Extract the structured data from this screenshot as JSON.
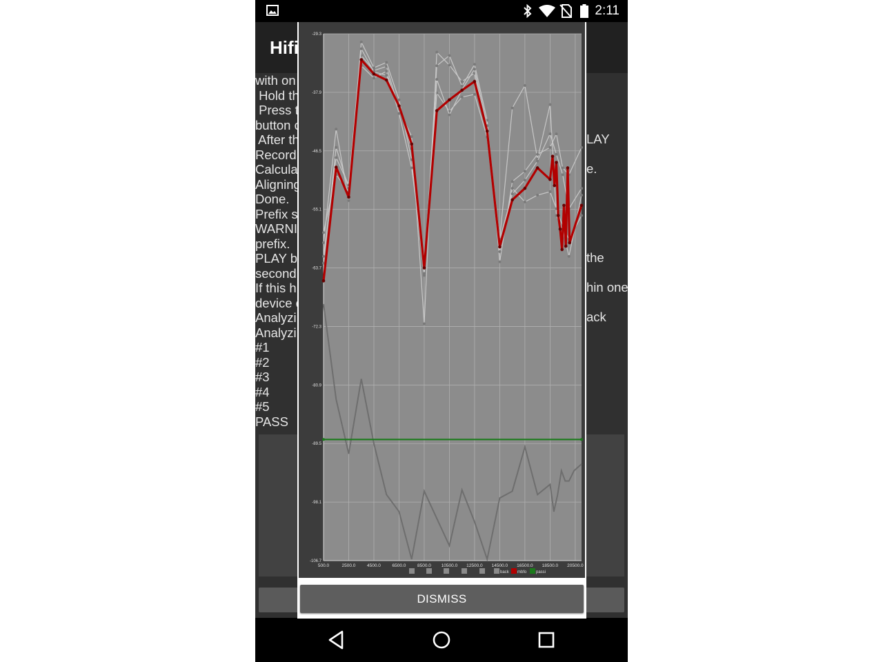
{
  "status_bar": {
    "time": "2:11",
    "icons": [
      "image-icon",
      "bluetooth-icon",
      "wifi-icon",
      "no-sim-icon",
      "battery-icon"
    ]
  },
  "app_bar": {
    "title_visible": "Hifi"
  },
  "log_lines": [
    "with on",
    " Hold th",
    " Press t",
    "button c",
    " After th",
    "Record",
    "Calcula",
    "Aligning",
    "Done.",
    "Prefix s",
    "WARNI",
    "prefix.",
    "PLAY b",
    "second",
    "If this h",
    "device c",
    "Analyzi",
    "Analyzi",
    "#1",
    "#2",
    "#3",
    "#4",
    "#5",
    "PASS"
  ],
  "log_right_fragments": [
    {
      "line": 2,
      "text": "LAY"
    },
    {
      "line": 4,
      "text": "e."
    },
    {
      "line": 10,
      "text": "the"
    },
    {
      "line": 12,
      "text": "hin one"
    },
    {
      "line": 14,
      "text": "ack"
    }
  ],
  "dialog": {
    "dismiss_label": "DISMISS"
  },
  "chart_data": {
    "type": "line",
    "xlim": [
      500,
      21000
    ],
    "ylim": [
      -106.7,
      -29.3
    ],
    "x_ticks": [
      "500.0",
      "2500.0",
      "4500.0",
      "6500.0",
      "8500.0",
      "10500.0",
      "12500.0",
      "14500.0",
      "16500.0",
      "18500.0",
      "20500.0"
    ],
    "y_ticks": [
      "-29.3",
      "-37.9",
      "-46.5",
      "-55.1",
      "-63.7",
      "-72.3",
      "-80.9",
      "-89.5",
      "-98.1",
      "-106.7"
    ],
    "legend": [
      "back",
      "mbfo",
      "passi"
    ],
    "legend_placement": "bottom",
    "grid": true,
    "colors": {
      "plot_bg": "#8c8c8c",
      "frame_bg": "#3c3c3c",
      "light_series": "#c8c8c8",
      "background_series": "#6e6e6e",
      "main_series": "#b20000",
      "pass_series": "#1b7a1b"
    },
    "main_series": {
      "x": [
        500,
        1500,
        2500,
        3500,
        4500,
        5500,
        6500,
        7500,
        8500,
        9500,
        10500,
        11500,
        12500,
        13500,
        14500,
        15500,
        16500,
        17500,
        18500,
        18700,
        18850,
        19000,
        19150,
        19300,
        19450,
        19600,
        19750,
        19900,
        20050,
        21000
      ],
      "y": [
        -65.6,
        -48.9,
        -53.3,
        -33.1,
        -35.2,
        -36.1,
        -39.9,
        -45.5,
        -63.7,
        -40.6,
        -39.0,
        -37.6,
        -36.3,
        -43.6,
        -60.6,
        -53.7,
        -52.0,
        -49.0,
        -50.7,
        -47.3,
        -51.6,
        -48.2,
        -56.0,
        -58.0,
        -61.0,
        -54.5,
        -60.5,
        -49.0,
        -60.0,
        -54.5
      ]
    },
    "light_series": [
      {
        "x": [
          500,
          1500,
          2500,
          3500,
          4500,
          5500,
          6500,
          7500,
          8500,
          9500,
          10500,
          11500,
          12500,
          13500,
          14500,
          15500,
          16500,
          17500,
          18500,
          19000,
          19500,
          20000,
          21000
        ],
        "y": [
          -60.0,
          -43.3,
          -53.8,
          -32.5,
          -34.7,
          -34.1,
          -40.4,
          -44.4,
          -71.9,
          -32.0,
          -33.9,
          -36.3,
          -35.1,
          -43.8,
          -59.5,
          -40.2,
          -36.9,
          -47.7,
          -39.7,
          -56.0,
          -58.0,
          -62.0,
          -53.0
        ]
      },
      {
        "x": [
          500,
          1500,
          2500,
          3500,
          4500,
          5500,
          6500,
          7500,
          8500,
          9500,
          10500,
          11500,
          12500,
          13500,
          14500,
          15500,
          16500,
          17500,
          18500,
          19000,
          19500,
          20000,
          21000
        ],
        "y": [
          -63.0,
          -46.0,
          -52.0,
          -30.5,
          -34.3,
          -33.5,
          -39.0,
          -47.8,
          -64.8,
          -34.0,
          -32.5,
          -37.0,
          -33.8,
          -42.0,
          -62.8,
          -51.0,
          -49.5,
          -47.0,
          -46.0,
          -44.0,
          -49.0,
          -50.0,
          -46.0
        ]
      },
      {
        "x": [
          500,
          1500,
          2500,
          3500,
          4500,
          5500,
          6500,
          7500,
          8500,
          9500,
          10500,
          11500,
          12500,
          13500,
          14500,
          15500,
          16500,
          17500,
          18500,
          19000,
          19500,
          20000,
          21000
        ],
        "y": [
          -58.5,
          -50.0,
          -52.5,
          -34.0,
          -35.8,
          -34.8,
          -41.0,
          -49.0,
          -63.0,
          -38.0,
          -40.7,
          -38.6,
          -38.2,
          -44.5,
          -61.3,
          -52.0,
          -54.0,
          -53.0,
          -52.5,
          -55.0,
          -57.5,
          -59.5,
          -56.0
        ]
      },
      {
        "x": [
          500,
          1500,
          2500,
          3500,
          4500,
          5500,
          6500,
          7500,
          8500,
          9500,
          10500,
          11500,
          12500,
          13500,
          14500,
          15500,
          16500,
          17500,
          18500,
          19000,
          19500,
          20000,
          21000
        ],
        "y": [
          -62.0,
          -47.5,
          -51.5,
          -31.5,
          -34.9,
          -35.4,
          -40.0,
          -46.2,
          -64.5,
          -36.0,
          -41.2,
          -37.5,
          -34.5,
          -42.8,
          -59.5,
          -52.8,
          -50.8,
          -48.0,
          -44.0,
          -47.0,
          -50.0,
          -55.0,
          -52.0
        ]
      }
    ],
    "background_series": {
      "x": [
        500,
        1500,
        2500,
        3500,
        4500,
        5500,
        6500,
        7500,
        8500,
        9500,
        10500,
        11500,
        12500,
        13500,
        14500,
        15500,
        16500,
        17500,
        18500,
        18800,
        19100,
        19400,
        19700,
        20000,
        20400,
        21000
      ],
      "y": [
        -69.0,
        -83.0,
        -91.0,
        -80.0,
        -89.5,
        -97.0,
        -99.5,
        -106.5,
        -96.5,
        -100.5,
        -104.5,
        -96.3,
        -101.0,
        -106.5,
        -97.5,
        -96.5,
        -90.0,
        -97.0,
        -95.5,
        -99.5,
        -97.0,
        -93.5,
        -95.0,
        -95.0,
        -93.5,
        -92.5
      ]
    },
    "pass_series": {
      "x": [
        500,
        21000
      ],
      "y": [
        -88.9,
        -88.9
      ]
    }
  }
}
